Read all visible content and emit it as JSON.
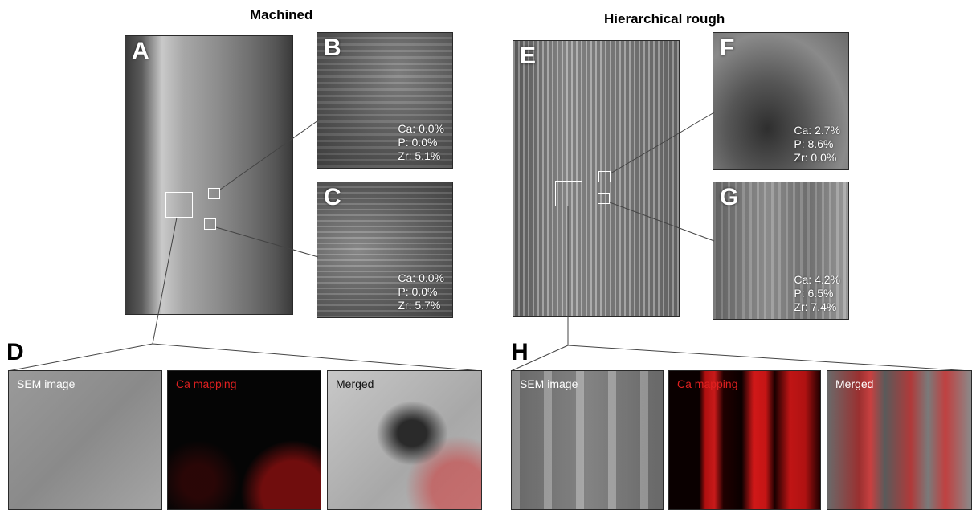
{
  "titles": {
    "left": "Machined",
    "right": "Hierarchical rough"
  },
  "panels": {
    "A": {
      "letter": "A"
    },
    "B": {
      "letter": "B",
      "ca": "Ca: 0.0%",
      "p": "P: 0.0%",
      "zr": "Zr: 5.1%"
    },
    "C": {
      "letter": "C",
      "ca": "Ca: 0.0%",
      "p": "P: 0.0%",
      "zr": "Zr: 5.7%"
    },
    "D": {
      "letter": "D"
    },
    "E": {
      "letter": "E"
    },
    "F": {
      "letter": "F",
      "ca": "Ca: 2.7%",
      "p": "P: 8.6%",
      "zr": "Zr: 0.0%"
    },
    "G": {
      "letter": "G",
      "ca": "Ca: 4.2%",
      "p": "P: 6.5%",
      "zr": "Zr: 7.4%"
    },
    "H": {
      "letter": "H"
    }
  },
  "tiles": {
    "sem": "SEM image",
    "ca": "Ca mapping",
    "merged": "Merged"
  },
  "colors": {
    "ca_label": "#e02020",
    "tile_label": "#ffffff"
  }
}
